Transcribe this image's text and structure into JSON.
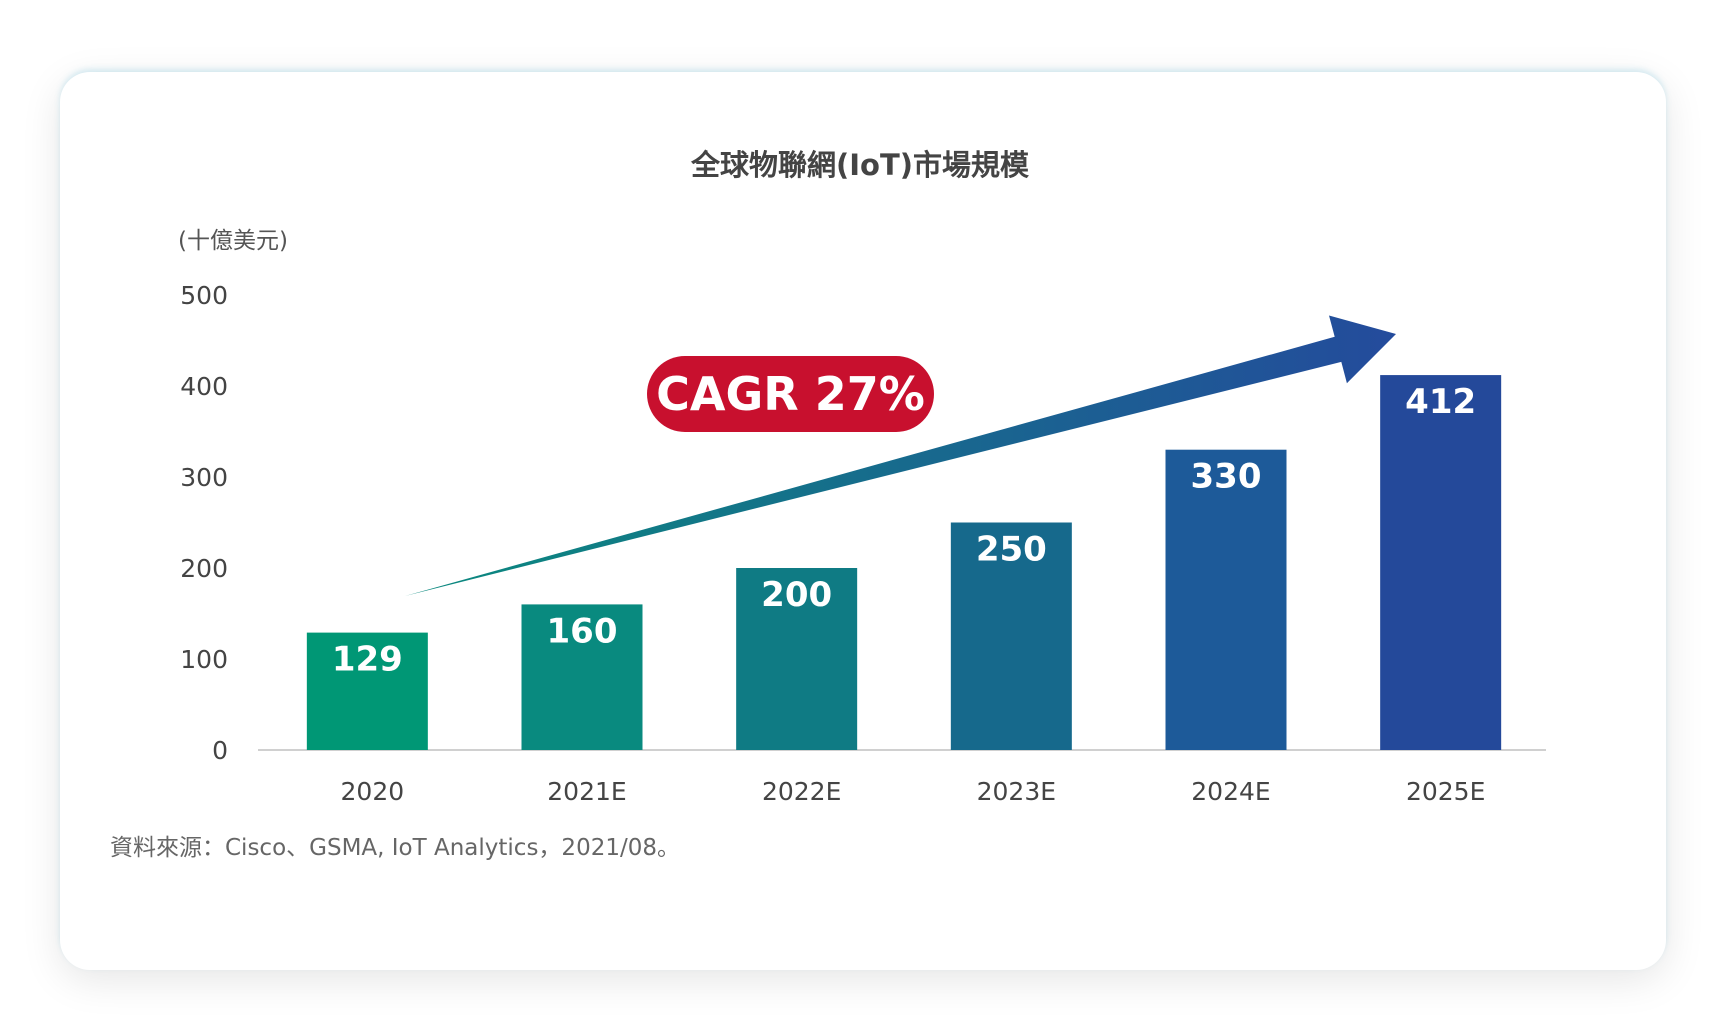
{
  "chart_data": {
    "type": "bar",
    "title": "全球物聯網(IoT)市場規模",
    "ylabel": "(十億美元)",
    "xlabel": "",
    "categories": [
      "2020",
      "2021E",
      "2022E",
      "2023E",
      "2024E",
      "2025E"
    ],
    "values": [
      129,
      160,
      200,
      250,
      330,
      412
    ],
    "data_labels": [
      "129",
      "160",
      "200",
      "250",
      "330",
      "412"
    ],
    "y_ticks": [
      "0",
      "100",
      "200",
      "300",
      "400",
      "500"
    ],
    "ylim": [
      0,
      500
    ],
    "grid": false,
    "bar_colors": [
      "#009775",
      "#098a7f",
      "#0f7b84",
      "#16698c",
      "#1d5a99",
      "#24499a"
    ],
    "annotation": {
      "label": "CAGR 27%",
      "badge_color": "#c8102e",
      "arrow_color_start": "#0a8a7e",
      "arrow_color_end": "#244b9c"
    },
    "source": "資料來源：Cisco、GSMA, IoT Analytics，2021/08。"
  }
}
